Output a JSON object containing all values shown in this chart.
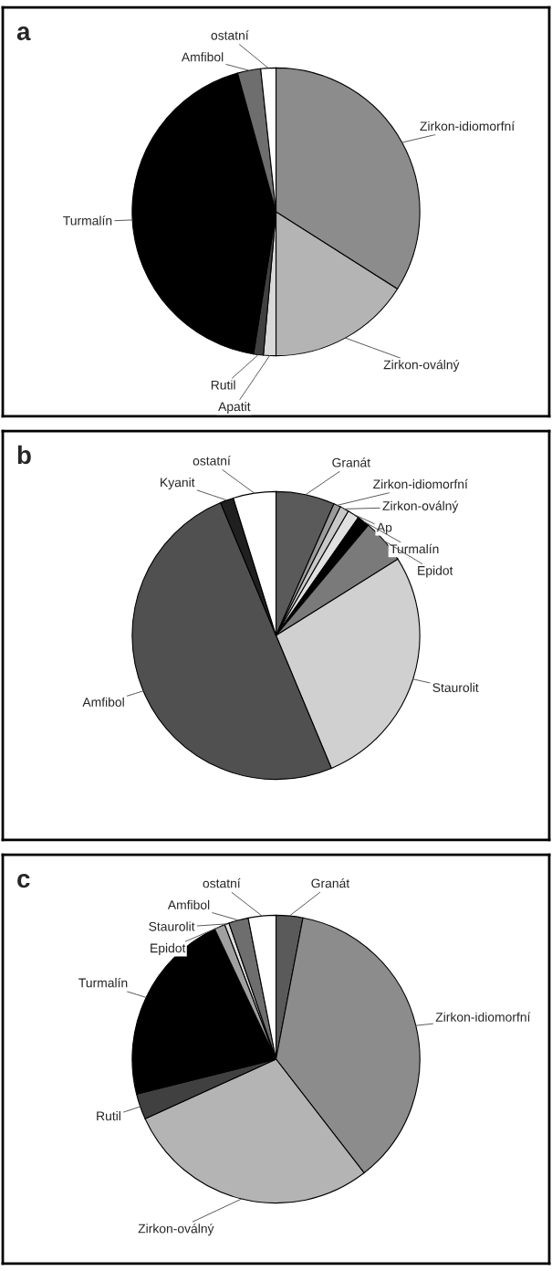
{
  "chart_data": [
    {
      "type": "pie",
      "title": "a",
      "categories": [
        "Zirkon-idiomorfní",
        "Zirkon-oválný",
        "Apatit",
        "Rutil",
        "Turmalín",
        "Amfibol",
        "ostatní"
      ],
      "values": [
        34,
        16,
        1.4,
        1.1,
        43.2,
        2.6,
        1.7
      ],
      "colors": [
        "#8c8c8c",
        "#b4b4b4",
        "#d9d9d9",
        "#404040",
        "#000000",
        "#6e6e6e",
        "#ffffff"
      ]
    },
    {
      "type": "pie",
      "title": "b",
      "categories": [
        "Granát",
        "Zirkon-idiomorfní",
        "Zirkon-oválný",
        "Ap",
        "Turmalín",
        "Epidot",
        "Staurolit",
        "Amfibol",
        "Kyanit",
        "ostatní"
      ],
      "values": [
        6.6,
        0.8,
        1.0,
        1.3,
        1.4,
        5.0,
        27.6,
        50.0,
        1.5,
        4.8
      ],
      "colors": [
        "#5a5a5a",
        "#9a9a9a",
        "#c8c8c8",
        "#e0e0e0",
        "#000000",
        "#7a7a7a",
        "#d0d0d0",
        "#505050",
        "#202020",
        "#ffffff"
      ]
    },
    {
      "type": "pie",
      "title": "c",
      "categories": [
        "Granát",
        "Zirkon-idiomorfní",
        "Zirkon-oválný",
        "Rutil",
        "Turmalín",
        "Epidot",
        "Staurolit",
        "Amfibol",
        "ostatní"
      ],
      "values": [
        3.0,
        36.5,
        28.7,
        2.9,
        21.9,
        1.2,
        0.5,
        2.2,
        3.1
      ],
      "colors": [
        "#5a5a5a",
        "#8c8c8c",
        "#b4b4b4",
        "#404040",
        "#000000",
        "#a0a0a0",
        "#e0e0e0",
        "#6e6e6e",
        "#ffffff"
      ]
    }
  ]
}
